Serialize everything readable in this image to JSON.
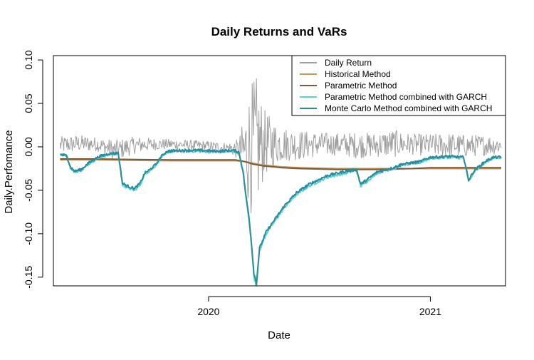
{
  "chart_data": {
    "type": "line",
    "title": "Daily Returns and VaRs",
    "xlabel": "Date",
    "ylabel": "Daily.Perfomance",
    "x_ticks": [
      {
        "label": "2020",
        "date": "2020-01-01"
      },
      {
        "label": "2021",
        "date": "2021-01-01"
      }
    ],
    "x_range": [
      "2019-04-20",
      "2021-05-05"
    ],
    "ylim": [
      -0.16,
      0.105
    ],
    "y_ticks": [
      -0.15,
      -0.1,
      -0.05,
      0.0,
      0.05,
      0.1
    ],
    "y_tick_labels": [
      "-0.15",
      "-0.10",
      "-0.05",
      "0.00",
      "0.05",
      "0.10"
    ],
    "grid": false,
    "legend_position": "top-right",
    "series": [
      {
        "name": "Daily Return",
        "color": "#a0a0a0",
        "width": 1,
        "style": "noisy",
        "points": [
          [
            "2019-05-01",
            0.002
          ],
          [
            "2019-06-01",
            0.004
          ],
          [
            "2019-07-01",
            0.003
          ],
          [
            "2019-08-01",
            -0.004
          ],
          [
            "2019-09-01",
            0.002
          ],
          [
            "2019-10-01",
            0.003
          ],
          [
            "2019-11-01",
            0.003
          ],
          [
            "2019-12-01",
            0.002
          ],
          [
            "2020-01-01",
            0.001
          ],
          [
            "2020-02-01",
            -0.001
          ],
          [
            "2020-02-20",
            -0.003
          ],
          [
            "2020-03-01",
            -0.005
          ],
          [
            "2020-03-15",
            0.0
          ],
          [
            "2020-04-01",
            0.004
          ],
          [
            "2020-05-01",
            0.003
          ],
          [
            "2020-06-01",
            0.002
          ],
          [
            "2020-07-01",
            0.003
          ],
          [
            "2020-08-01",
            0.003
          ],
          [
            "2020-09-01",
            0.002
          ],
          [
            "2020-10-01",
            0.002
          ],
          [
            "2020-11-01",
            0.004
          ],
          [
            "2020-12-01",
            0.003
          ],
          [
            "2021-01-01",
            0.002
          ],
          [
            "2021-02-01",
            0.002
          ],
          [
            "2021-03-01",
            0.001
          ],
          [
            "2021-04-01",
            0.002
          ],
          [
            "2021-04-28",
            0.002
          ]
        ],
        "volatility": [
          [
            "2019-05-01",
            0.01
          ],
          [
            "2019-06-01",
            0.01
          ],
          [
            "2019-07-01",
            0.008
          ],
          [
            "2019-08-01",
            0.012
          ],
          [
            "2019-09-01",
            0.01
          ],
          [
            "2019-10-01",
            0.007
          ],
          [
            "2019-11-01",
            0.006
          ],
          [
            "2019-12-01",
            0.006
          ],
          [
            "2020-01-01",
            0.006
          ],
          [
            "2020-02-01",
            0.006
          ],
          [
            "2020-02-20",
            0.012
          ],
          [
            "2020-03-01",
            0.045
          ],
          [
            "2020-03-10",
            0.075
          ],
          [
            "2020-03-20",
            0.08
          ],
          [
            "2020-04-01",
            0.04
          ],
          [
            "2020-04-20",
            0.025
          ],
          [
            "2020-05-01",
            0.02
          ],
          [
            "2020-06-01",
            0.017
          ],
          [
            "2020-07-01",
            0.014
          ],
          [
            "2020-08-01",
            0.013
          ],
          [
            "2020-09-01",
            0.015
          ],
          [
            "2020-10-01",
            0.014
          ],
          [
            "2020-11-01",
            0.016
          ],
          [
            "2020-12-01",
            0.012
          ],
          [
            "2021-01-01",
            0.013
          ],
          [
            "2021-02-01",
            0.014
          ],
          [
            "2021-03-01",
            0.013
          ],
          [
            "2021-04-01",
            0.012
          ],
          [
            "2021-04-28",
            0.01
          ]
        ]
      },
      {
        "name": "Historical Method",
        "color": "#c8965a",
        "width": 2,
        "style": "smooth",
        "points": [
          [
            "2019-05-01",
            -0.015
          ],
          [
            "2019-07-01",
            -0.015
          ],
          [
            "2019-09-01",
            -0.0155
          ],
          [
            "2019-11-01",
            -0.016
          ],
          [
            "2020-01-01",
            -0.016
          ],
          [
            "2020-02-15",
            -0.016
          ],
          [
            "2020-03-01",
            -0.017
          ],
          [
            "2020-03-15",
            -0.019
          ],
          [
            "2020-04-01",
            -0.021
          ],
          [
            "2020-05-01",
            -0.023
          ],
          [
            "2020-06-01",
            -0.024
          ],
          [
            "2020-08-01",
            -0.025
          ],
          [
            "2020-10-01",
            -0.025
          ],
          [
            "2020-12-01",
            -0.025
          ],
          [
            "2021-01-01",
            -0.025
          ],
          [
            "2021-04-28",
            -0.025
          ]
        ]
      },
      {
        "name": "Parametric Method",
        "color": "#7a5a3a",
        "width": 2,
        "style": "smooth",
        "points": [
          [
            "2019-05-01",
            -0.014
          ],
          [
            "2019-07-01",
            -0.014
          ],
          [
            "2019-09-01",
            -0.0145
          ],
          [
            "2019-11-01",
            -0.015
          ],
          [
            "2020-01-01",
            -0.015
          ],
          [
            "2020-02-15",
            -0.015
          ],
          [
            "2020-03-01",
            -0.017
          ],
          [
            "2020-03-15",
            -0.02
          ],
          [
            "2020-04-01",
            -0.022
          ],
          [
            "2020-05-01",
            -0.024
          ],
          [
            "2020-06-01",
            -0.025
          ],
          [
            "2020-08-01",
            -0.026
          ],
          [
            "2020-10-01",
            -0.026
          ],
          [
            "2020-12-01",
            -0.025
          ],
          [
            "2021-01-01",
            -0.024
          ],
          [
            "2021-04-28",
            -0.024
          ]
        ]
      },
      {
        "name": "Parametric Method combined with GARCH",
        "color": "#5ad2dc",
        "width": 2,
        "style": "garch",
        "points": [
          [
            "2019-05-01",
            -0.009
          ],
          [
            "2019-05-12",
            -0.01
          ],
          [
            "2019-05-18",
            -0.024
          ],
          [
            "2019-05-25",
            -0.029
          ],
          [
            "2019-06-05",
            -0.027
          ],
          [
            "2019-06-20",
            -0.018
          ],
          [
            "2019-07-05",
            -0.012
          ],
          [
            "2019-07-20",
            -0.009
          ],
          [
            "2019-08-05",
            -0.008
          ],
          [
            "2019-08-12",
            -0.044
          ],
          [
            "2019-08-20",
            -0.047
          ],
          [
            "2019-09-01",
            -0.05
          ],
          [
            "2019-09-10",
            -0.044
          ],
          [
            "2019-09-18",
            -0.031
          ],
          [
            "2019-09-25",
            -0.028
          ],
          [
            "2019-10-05",
            -0.022
          ],
          [
            "2019-10-15",
            -0.012
          ],
          [
            "2019-10-25",
            -0.006
          ],
          [
            "2019-11-15",
            -0.005
          ],
          [
            "2019-12-15",
            -0.005
          ],
          [
            "2020-01-15",
            -0.006
          ],
          [
            "2020-02-10",
            -0.005
          ],
          [
            "2020-02-20",
            -0.007
          ],
          [
            "2020-02-27",
            -0.03
          ],
          [
            "2020-03-03",
            -0.06
          ],
          [
            "2020-03-08",
            -0.085
          ],
          [
            "2020-03-12",
            -0.115
          ],
          [
            "2020-03-16",
            -0.15
          ],
          [
            "2020-03-20",
            -0.16
          ],
          [
            "2020-03-25",
            -0.12
          ],
          [
            "2020-04-05",
            -0.1
          ],
          [
            "2020-04-20",
            -0.085
          ],
          [
            "2020-05-05",
            -0.07
          ],
          [
            "2020-05-25",
            -0.055
          ],
          [
            "2020-06-15",
            -0.045
          ],
          [
            "2020-07-15",
            -0.035
          ],
          [
            "2020-08-15",
            -0.03
          ],
          [
            "2020-09-01",
            -0.027
          ],
          [
            "2020-09-08",
            -0.045
          ],
          [
            "2020-09-18",
            -0.04
          ],
          [
            "2020-10-05",
            -0.03
          ],
          [
            "2020-11-01",
            -0.025
          ],
          [
            "2020-11-15",
            -0.021
          ],
          [
            "2020-12-15",
            -0.018
          ],
          [
            "2021-01-01",
            -0.013
          ],
          [
            "2021-02-01",
            -0.012
          ],
          [
            "2021-02-25",
            -0.013
          ],
          [
            "2021-03-05",
            -0.04
          ],
          [
            "2021-03-15",
            -0.028
          ],
          [
            "2021-04-01",
            -0.018
          ],
          [
            "2021-04-15",
            -0.013
          ],
          [
            "2021-04-28",
            -0.013
          ]
        ]
      },
      {
        "name": "Monte Carlo Method combined with GARCH",
        "color": "#2e8b99",
        "width": 2,
        "style": "garch",
        "points": [
          [
            "2019-05-01",
            -0.009
          ],
          [
            "2019-05-12",
            -0.01
          ],
          [
            "2019-05-18",
            -0.023
          ],
          [
            "2019-05-25",
            -0.028
          ],
          [
            "2019-06-05",
            -0.026
          ],
          [
            "2019-06-20",
            -0.017
          ],
          [
            "2019-07-05",
            -0.011
          ],
          [
            "2019-07-20",
            -0.008
          ],
          [
            "2019-08-05",
            -0.007
          ],
          [
            "2019-08-12",
            -0.042
          ],
          [
            "2019-08-20",
            -0.045
          ],
          [
            "2019-09-01",
            -0.048
          ],
          [
            "2019-09-10",
            -0.042
          ],
          [
            "2019-09-18",
            -0.03
          ],
          [
            "2019-09-25",
            -0.027
          ],
          [
            "2019-10-05",
            -0.021
          ],
          [
            "2019-10-15",
            -0.011
          ],
          [
            "2019-10-25",
            -0.005
          ],
          [
            "2019-11-15",
            -0.004
          ],
          [
            "2019-12-15",
            -0.004
          ],
          [
            "2020-01-15",
            -0.005
          ],
          [
            "2020-02-10",
            -0.004
          ],
          [
            "2020-02-20",
            -0.006
          ],
          [
            "2020-02-27",
            -0.028
          ],
          [
            "2020-03-03",
            -0.058
          ],
          [
            "2020-03-08",
            -0.082
          ],
          [
            "2020-03-12",
            -0.112
          ],
          [
            "2020-03-16",
            -0.146
          ],
          [
            "2020-03-20",
            -0.157
          ],
          [
            "2020-03-25",
            -0.117
          ],
          [
            "2020-04-05",
            -0.098
          ],
          [
            "2020-04-20",
            -0.083
          ],
          [
            "2020-05-05",
            -0.068
          ],
          [
            "2020-05-25",
            -0.053
          ],
          [
            "2020-06-15",
            -0.043
          ],
          [
            "2020-07-15",
            -0.033
          ],
          [
            "2020-08-15",
            -0.028
          ],
          [
            "2020-09-01",
            -0.026
          ],
          [
            "2020-09-08",
            -0.043
          ],
          [
            "2020-09-18",
            -0.038
          ],
          [
            "2020-10-05",
            -0.029
          ],
          [
            "2020-11-01",
            -0.024
          ],
          [
            "2020-11-15",
            -0.02
          ],
          [
            "2020-12-15",
            -0.017
          ],
          [
            "2021-01-01",
            -0.012
          ],
          [
            "2021-02-01",
            -0.011
          ],
          [
            "2021-02-25",
            -0.012
          ],
          [
            "2021-03-05",
            -0.038
          ],
          [
            "2021-03-15",
            -0.027
          ],
          [
            "2021-04-01",
            -0.017
          ],
          [
            "2021-04-15",
            -0.012
          ],
          [
            "2021-04-28",
            -0.012
          ]
        ]
      }
    ]
  }
}
